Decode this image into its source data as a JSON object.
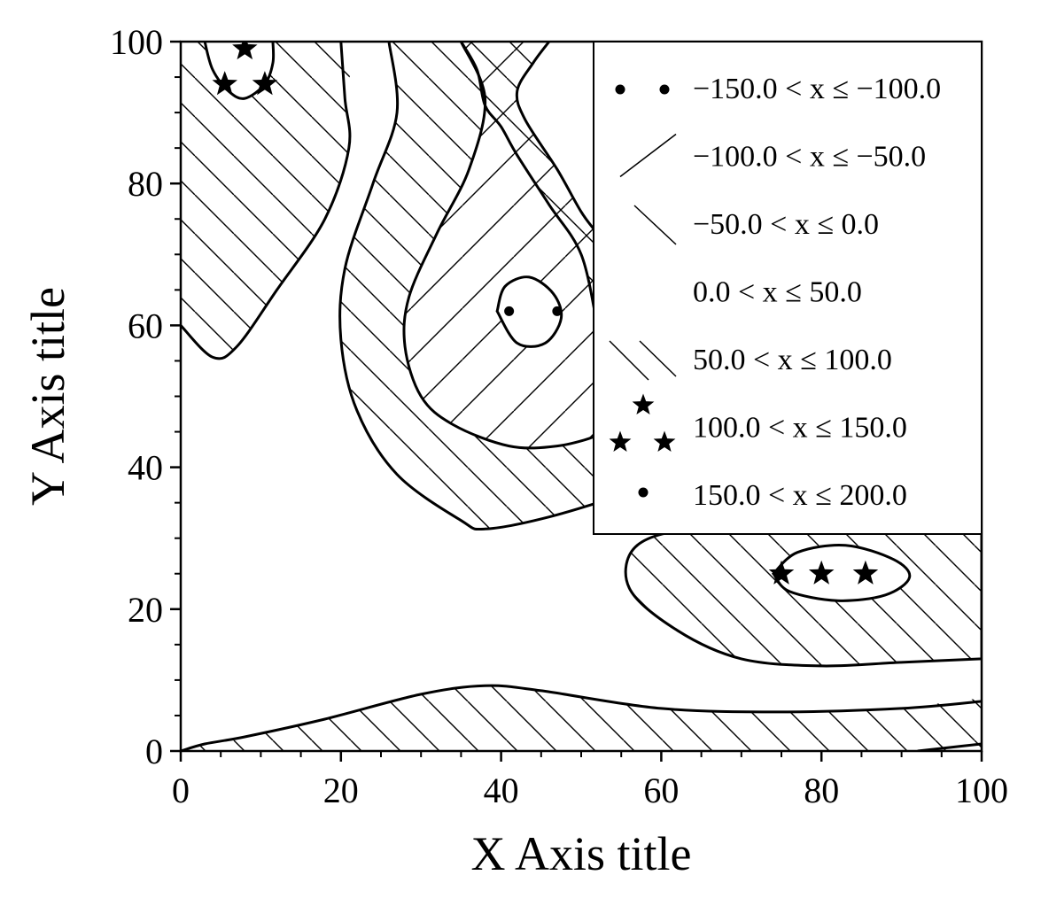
{
  "chart_data": {
    "type": "contour",
    "title": "",
    "xlabel": "X Axis title",
    "ylabel": "Y Axis title",
    "xlim": [
      0,
      100
    ],
    "ylim": [
      0,
      100
    ],
    "xticks": [
      0,
      20,
      40,
      60,
      80,
      100
    ],
    "yticks": [
      0,
      20,
      40,
      60,
      80,
      100
    ],
    "xtick_labels": [
      "0",
      "20",
      "40",
      "60",
      "80",
      "100"
    ],
    "ytick_labels": [
      "0",
      "20",
      "40",
      "60",
      "80",
      "100"
    ],
    "minor_ticks_per_interval": 4,
    "grid": false,
    "legend_position": "top-right",
    "levels": [
      {
        "label": "−150.0 < x ≤ −100.0",
        "min": -150,
        "max": -100,
        "pattern": "dots-sparse"
      },
      {
        "label": "−100.0 < x ≤ −50.0",
        "min": -100,
        "max": -50,
        "pattern": "hatch-forward"
      },
      {
        "label": "−50.0 < x ≤ 0.0",
        "min": -50,
        "max": 0,
        "pattern": "hatch-back-sparse"
      },
      {
        "label": "0.0 < x ≤ 50.0",
        "min": 0,
        "max": 50,
        "pattern": "none"
      },
      {
        "label": "50.0 < x ≤ 100.0",
        "min": 50,
        "max": 100,
        "pattern": "hatch-back"
      },
      {
        "label": "100.0 < x ≤ 150.0",
        "min": 100,
        "max": 150,
        "pattern": "stars"
      },
      {
        "label": "150.0 < x ≤ 200.0",
        "min": 150,
        "max": 200,
        "pattern": "dots"
      }
    ],
    "contour_lines": [
      {
        "name": "bottom-band-upper",
        "points": [
          [
            0,
            0
          ],
          [
            3,
            1
          ],
          [
            8,
            2
          ],
          [
            18,
            4.5
          ],
          [
            30,
            8
          ],
          [
            38,
            9.2
          ],
          [
            45,
            8.5
          ],
          [
            60,
            6
          ],
          [
            75,
            5.5
          ],
          [
            90,
            6
          ],
          [
            100,
            7
          ]
        ]
      },
      {
        "name": "bottom-corner",
        "points": [
          [
            92,
            0
          ],
          [
            96,
            0.5
          ],
          [
            100,
            1
          ]
        ]
      },
      {
        "name": "right-lobe-outer",
        "points": [
          [
            100,
            13
          ],
          [
            90,
            12.5
          ],
          [
            80,
            12
          ],
          [
            70,
            13
          ],
          [
            62,
            17
          ],
          [
            56,
            23
          ],
          [
            57,
            29
          ],
          [
            65,
            31.5
          ],
          [
            80,
            32
          ],
          [
            100,
            32
          ]
        ]
      },
      {
        "name": "star-ellipse",
        "points": [
          [
            74,
            25
          ],
          [
            77,
            28
          ],
          [
            83,
            29
          ],
          [
            89,
            27
          ],
          [
            91,
            24.5
          ],
          [
            88,
            22
          ],
          [
            82,
            21.2
          ],
          [
            76,
            22.5
          ],
          [
            74,
            25
          ]
        ]
      },
      {
        "name": "top-left-lobe",
        "points": [
          [
            0,
            60
          ],
          [
            4,
            55.5
          ],
          [
            7,
            57
          ],
          [
            12,
            65
          ],
          [
            18,
            75
          ],
          [
            21,
            85
          ],
          [
            20.5,
            92
          ],
          [
            20,
            100
          ]
        ]
      },
      {
        "name": "top-left-ellipse",
        "points": [
          [
            3,
            100
          ],
          [
            4,
            96
          ],
          [
            6,
            93
          ],
          [
            8,
            92
          ],
          [
            10.5,
            94
          ],
          [
            11.5,
            97
          ],
          [
            11.5,
            100
          ]
        ]
      },
      {
        "name": "big-band-outer",
        "points": [
          [
            26,
            100
          ],
          [
            27,
            90
          ],
          [
            24,
            80
          ],
          [
            20.5,
            68
          ],
          [
            20,
            58
          ],
          [
            22,
            48
          ],
          [
            27,
            39
          ],
          [
            35,
            32.5
          ],
          [
            38,
            31.3
          ],
          [
            46,
            33
          ],
          [
            56,
            36.5
          ],
          [
            58,
            38
          ],
          [
            58,
            40
          ]
        ]
      },
      {
        "name": "inner-lobe",
        "points": [
          [
            35,
            100
          ],
          [
            38,
            92
          ],
          [
            36,
            82
          ],
          [
            32,
            73
          ],
          [
            28.5,
            64
          ],
          [
            28,
            57
          ],
          [
            30,
            50
          ],
          [
            34,
            46
          ],
          [
            41,
            43
          ],
          [
            47,
            43
          ],
          [
            52,
            44.5
          ],
          [
            53,
            46
          ]
        ]
      },
      {
        "name": "center-ellipse",
        "points": [
          [
            39.5,
            62
          ],
          [
            40.5,
            65.5
          ],
          [
            43.5,
            66.8
          ],
          [
            46.5,
            64.5
          ],
          [
            47.5,
            61
          ],
          [
            45.5,
            57.5
          ],
          [
            42,
            57.5
          ],
          [
            39.5,
            62
          ]
        ]
      },
      {
        "name": "top-middle-curve",
        "points": [
          [
            35,
            100
          ],
          [
            37,
            96
          ],
          [
            38,
            91
          ],
          [
            40,
            88
          ],
          [
            42,
            84
          ],
          [
            46,
            77
          ],
          [
            50,
            70
          ],
          [
            52,
            60
          ]
        ]
      },
      {
        "name": "top-right-curve",
        "points": [
          [
            46,
            100
          ],
          [
            44,
            97
          ],
          [
            42,
            93
          ],
          [
            43,
            89
          ],
          [
            47,
            82
          ],
          [
            50,
            76
          ],
          [
            52,
            73
          ]
        ]
      }
    ],
    "markers": {
      "stars": [
        [
          8,
          99
        ],
        [
          5.5,
          94
        ],
        [
          10.5,
          94
        ],
        [
          75,
          25
        ],
        [
          80,
          25
        ],
        [
          85.5,
          25
        ]
      ],
      "dots": [
        [
          41,
          62
        ],
        [
          47,
          62
        ]
      ]
    }
  }
}
